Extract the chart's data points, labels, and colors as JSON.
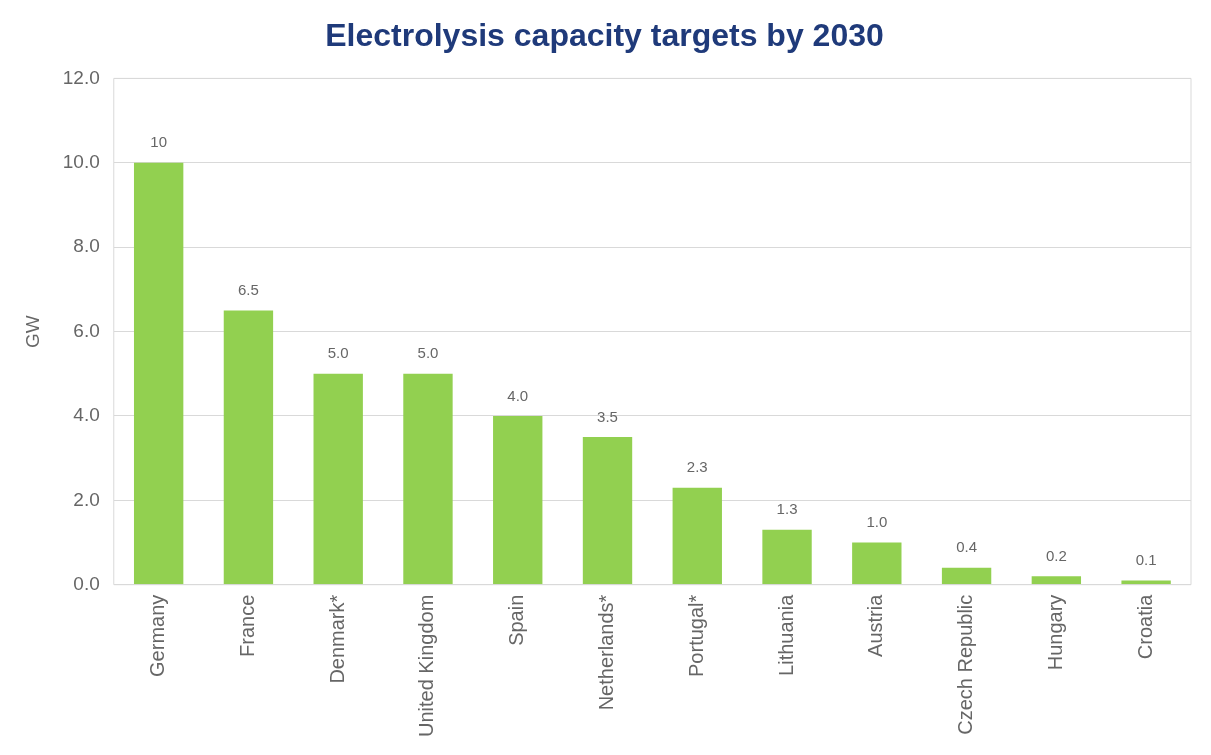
{
  "chart_data": {
    "type": "bar",
    "title": "Electrolysis capacity targets by 2030",
    "ylabel": "GW",
    "categories": [
      "Germany",
      "France",
      "Denmark*",
      "United Kingdom",
      "Spain",
      "Netherlands*",
      "Portugal*",
      "Lithuania",
      "Austria",
      "Czech Republic",
      "Hungary",
      "Croatia"
    ],
    "values": [
      10,
      6.5,
      5,
      5,
      4,
      3.5,
      2.3,
      1.3,
      1,
      0.4,
      0.2,
      0.1
    ],
    "value_labels": [
      "10",
      "6.5",
      "5.0",
      "5.0",
      "4.0",
      "3.5",
      "2.3",
      "1.3",
      "1.0",
      "0.4",
      "0.2",
      "0.1"
    ],
    "color": "#92d050",
    "ylim": [
      0,
      12
    ],
    "yticks": [
      {
        "value": 0,
        "label": "0.0"
      },
      {
        "value": 2,
        "label": "2.0"
      },
      {
        "value": 4,
        "label": "4.0"
      },
      {
        "value": 6,
        "label": "6.0"
      },
      {
        "value": 8,
        "label": "8.0"
      },
      {
        "value": 10,
        "label": "10.0"
      },
      {
        "value": 12,
        "label": "12.0"
      }
    ],
    "grid": "y",
    "legend": false
  }
}
